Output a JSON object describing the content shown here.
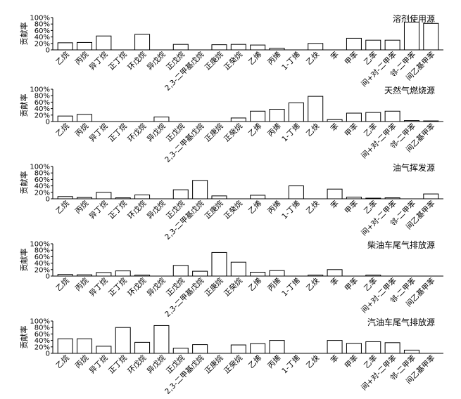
{
  "chart_data": {
    "type": "bar",
    "ylabel": "贡献率",
    "ylim": [
      0,
      100
    ],
    "yticks": [
      "0",
      "20%",
      "40%",
      "60%",
      "80%",
      "100%"
    ],
    "categories": [
      "乙烷",
      "丙烷",
      "异丁烷",
      "正丁烷",
      "环戊烷",
      "异戊烷",
      "正戊烷",
      "2,3-二甲基戊烷",
      "正庚烷",
      "正癸烷",
      "乙烯",
      "丙烯",
      "1-丁烯",
      "乙炔",
      "苯",
      "甲苯",
      "乙苯",
      "间+对-二甲苯",
      "邻-二甲苯",
      "间乙基甲苯"
    ],
    "panels": [
      {
        "title": "溶剂使用源",
        "values": [
          22,
          23,
          43,
          0,
          48,
          0,
          17,
          0,
          16,
          17,
          15,
          5,
          0,
          20,
          0,
          36,
          30,
          30,
          86,
          82
        ]
      },
      {
        "title": "天然气燃烧源",
        "values": [
          17,
          22,
          0,
          0,
          0,
          14,
          0,
          0,
          0,
          11,
          32,
          38,
          58,
          78,
          6,
          26,
          28,
          32,
          3,
          2
        ]
      },
      {
        "title": "油气挥发源",
        "values": [
          7,
          4,
          20,
          3,
          12,
          0,
          28,
          57,
          9,
          0,
          11,
          0,
          40,
          0,
          30,
          5,
          2,
          3,
          0,
          15
        ]
      },
      {
        "title": "柴油车尾气排放源",
        "values": [
          5,
          4,
          11,
          16,
          3,
          0,
          33,
          15,
          73,
          43,
          12,
          17,
          0,
          3,
          20,
          0,
          3,
          0,
          0,
          0
        ]
      },
      {
        "title": "汽油车尾气排放源",
        "values": [
          45,
          45,
          22,
          80,
          34,
          86,
          16,
          27,
          0,
          26,
          30,
          40,
          0,
          0,
          40,
          31,
          36,
          33,
          10,
          0
        ]
      }
    ]
  }
}
